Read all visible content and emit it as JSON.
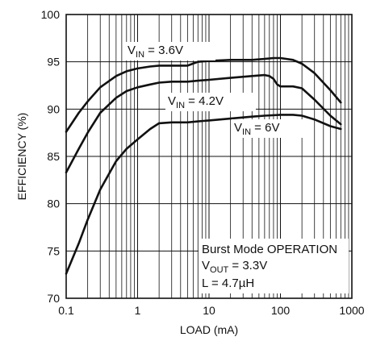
{
  "chart_data": {
    "type": "line",
    "x_scale": "log",
    "xlim": [
      0.1,
      1000
    ],
    "ylim": [
      70,
      100
    ],
    "xlabel": "LOAD (mA)",
    "ylabel": "EFFICIENCY (%)",
    "x_ticks": [
      "0.1",
      "1",
      "10",
      "100",
      "1000"
    ],
    "x_tick_values": [
      0.1,
      1,
      10,
      100,
      1000
    ],
    "y_ticks": [
      "70",
      "75",
      "80",
      "85",
      "90",
      "95",
      "100"
    ],
    "y_tick_values": [
      70,
      75,
      80,
      85,
      90,
      95,
      100
    ],
    "grid": true,
    "series": [
      {
        "name_main": "V",
        "name_sub": "IN",
        "name_rest": " = 3.6V",
        "x": [
          0.1,
          0.15,
          0.2,
          0.3,
          0.5,
          0.7,
          1,
          1.5,
          2,
          3,
          5,
          7,
          10,
          20,
          40,
          60,
          80,
          100,
          150,
          200,
          300,
          500,
          700
        ],
        "y": [
          87.6,
          89.6,
          90.8,
          92.3,
          93.5,
          94.0,
          94.3,
          94.5,
          94.6,
          94.6,
          94.6,
          95.0,
          95.1,
          95.2,
          95.2,
          95.3,
          95.4,
          95.4,
          95.2,
          94.8,
          93.8,
          92.0,
          90.7
        ]
      },
      {
        "name_main": "V",
        "name_sub": "IN",
        "name_rest": " = 4.2V",
        "x": [
          0.1,
          0.15,
          0.2,
          0.3,
          0.5,
          0.7,
          1,
          1.5,
          2,
          3,
          5,
          7,
          10,
          20,
          40,
          60,
          70,
          80,
          90,
          100,
          150,
          200,
          300,
          500,
          700
        ],
        "y": [
          83.3,
          85.8,
          87.5,
          89.6,
          91.2,
          91.9,
          92.3,
          92.6,
          92.8,
          92.9,
          92.9,
          93.0,
          93.1,
          93.3,
          93.5,
          93.6,
          93.5,
          93.2,
          92.6,
          92.4,
          92.4,
          92.2,
          91.0,
          89.3,
          88.4
        ]
      },
      {
        "name_main": "V",
        "name_sub": "IN",
        "name_rest": " = 6V",
        "x": [
          0.1,
          0.15,
          0.2,
          0.3,
          0.5,
          0.7,
          1,
          1.5,
          2,
          3,
          5,
          7,
          10,
          20,
          40,
          60,
          100,
          150,
          200,
          300,
          500,
          700
        ],
        "y": [
          72.6,
          75.8,
          78.3,
          81.5,
          84.5,
          85.8,
          86.8,
          87.9,
          88.5,
          88.6,
          88.6,
          88.7,
          88.8,
          89.0,
          89.2,
          89.3,
          89.4,
          89.4,
          89.3,
          88.9,
          88.2,
          87.9
        ]
      }
    ],
    "annotation": {
      "line1": "Burst Mode OPERATION",
      "line2_main": "V",
      "line2_sub": "OUT",
      "line2_rest": " = 3.3V",
      "line3": "L = 4.7µH"
    }
  }
}
